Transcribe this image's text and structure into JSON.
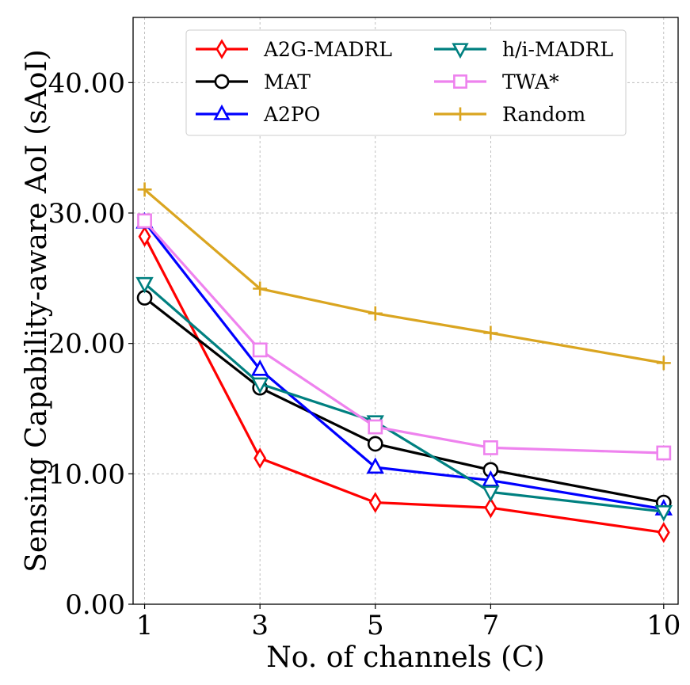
{
  "chart_data": {
    "type": "line",
    "title": "",
    "xlabel": "No. of channels (C)",
    "ylabel": "Sensing Capability-aware AoI (sAoI)",
    "x": [
      1,
      3,
      5,
      7,
      10
    ],
    "x_tick_labels": [
      "1",
      "3",
      "5",
      "7",
      "10"
    ],
    "y_tick_labels": [
      "0.00",
      "10.00",
      "20.00",
      "30.00",
      "40.00"
    ],
    "y_ticks": [
      0,
      10,
      20,
      30,
      40
    ],
    "xlim": [
      0.8,
      10.25
    ],
    "ylim": [
      0,
      45
    ],
    "grid": true,
    "legend_position": "top-center, 2 columns",
    "series": [
      {
        "name": "A2G-MADRL",
        "color": "#ff0000",
        "marker": "diamond-open",
        "values": [
          28.2,
          11.2,
          7.8,
          7.4,
          5.5
        ]
      },
      {
        "name": "MAT",
        "color": "#000000",
        "marker": "circle-open",
        "values": [
          23.5,
          16.6,
          12.3,
          10.3,
          7.8
        ]
      },
      {
        "name": "A2PO",
        "color": "#0000ff",
        "marker": "triangle-up-open",
        "values": [
          29.3,
          18.0,
          10.5,
          9.5,
          7.3
        ]
      },
      {
        "name": "h/i-MADRL",
        "color": "#008080",
        "marker": "triangle-down-open",
        "values": [
          24.6,
          16.9,
          14.0,
          8.6,
          7.1
        ]
      },
      {
        "name": "TWA*",
        "color": "#ee82ee",
        "marker": "square-open",
        "values": [
          29.4,
          19.5,
          13.6,
          12.0,
          11.6
        ]
      },
      {
        "name": "Random",
        "color": "#daa520",
        "marker": "plus",
        "values": [
          31.8,
          24.2,
          22.3,
          20.8,
          18.5
        ]
      }
    ]
  }
}
